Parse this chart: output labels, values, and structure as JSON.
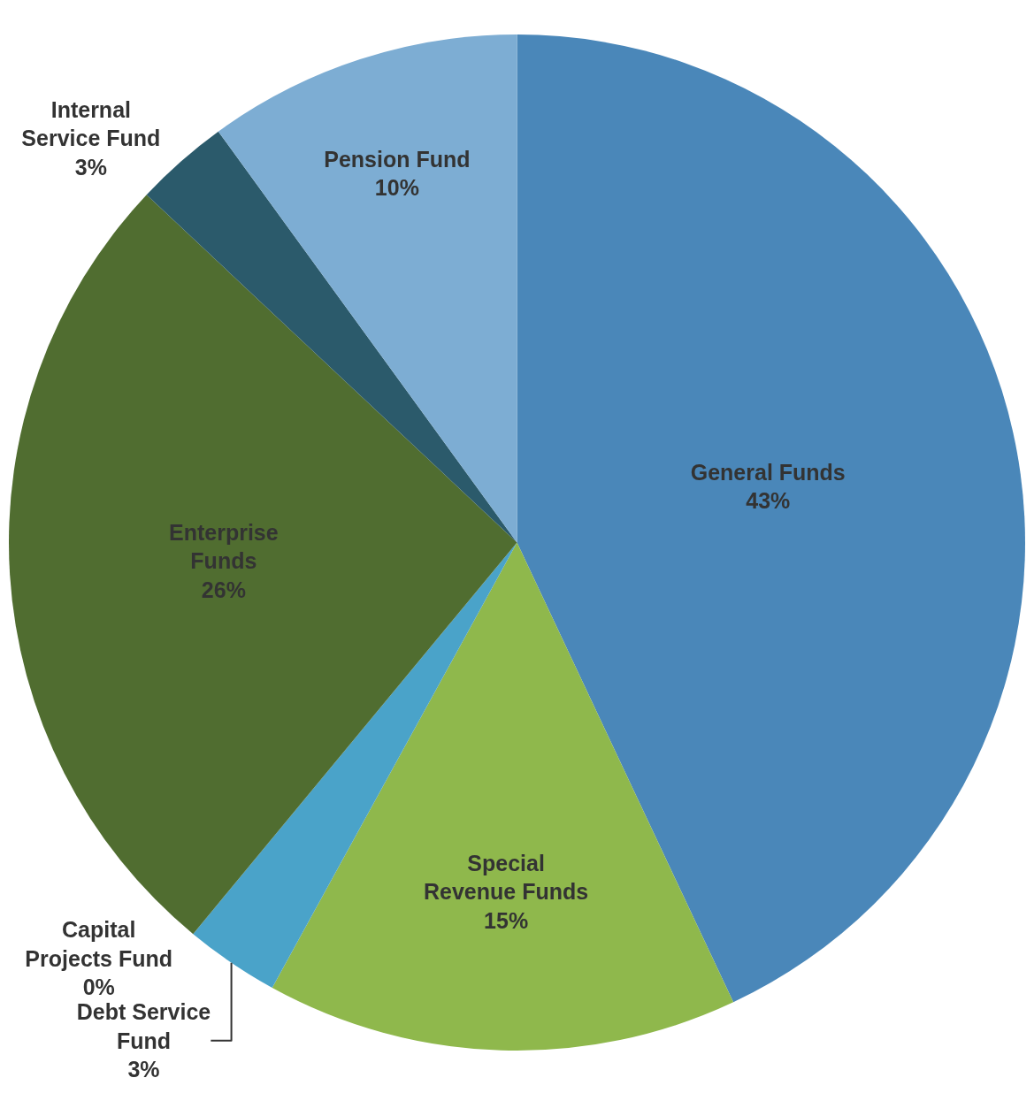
{
  "chart_data": {
    "type": "pie",
    "categories": [
      "General Funds",
      "Special Revenue Funds",
      "Debt Service Fund",
      "Capital Projects Fund",
      "Enterprise Funds",
      "Internal Service Fund",
      "Pension Fund"
    ],
    "values": [
      43,
      15,
      3,
      0,
      26,
      3,
      10
    ],
    "value_labels": [
      "43%",
      "15%",
      "3%",
      "0%",
      "26%",
      "3%",
      "10%"
    ],
    "colors": [
      "#4a87b9",
      "#8fb84c",
      "#4aa3c9",
      "#3d5a3a",
      "#506d30",
      "#2b5a6b",
      "#7dadd3"
    ],
    "legend": false
  }
}
